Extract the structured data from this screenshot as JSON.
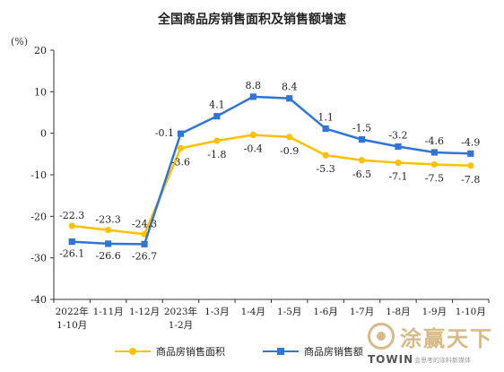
{
  "unit_label": "(%)",
  "chart_data": {
    "type": "line",
    "title": "全国商品房销售面积及销售额增速",
    "xlabel": "",
    "ylabel": "",
    "ylim": [
      -40,
      20
    ],
    "yticks": [
      -40,
      -30,
      -20,
      -10,
      0,
      10,
      20
    ],
    "grid": false,
    "legend_position": "bottom",
    "categories": [
      [
        "2022年",
        "1-10月"
      ],
      [
        "1-11月"
      ],
      [
        "1-12月"
      ],
      [
        "2023年",
        "1-2月"
      ],
      [
        "1-3月"
      ],
      [
        "1-4月"
      ],
      [
        "1-5月"
      ],
      [
        "1-6月"
      ],
      [
        "1-7月"
      ],
      [
        "1-8月"
      ],
      [
        "1-9月"
      ],
      [
        "1-10月"
      ]
    ],
    "series": [
      {
        "name": "商品房销售面积",
        "color": "#ffc000",
        "marker": "circle",
        "label_side": "above-left",
        "values": [
          -22.3,
          -23.3,
          -24.3,
          -3.6,
          -1.8,
          -0.4,
          -0.9,
          -5.3,
          -6.5,
          -7.1,
          -7.5,
          -7.8
        ]
      },
      {
        "name": "商品房销售额",
        "color": "#2e75d6",
        "marker": "square",
        "label_side": "above",
        "values": [
          -26.1,
          -26.6,
          -26.7,
          -0.1,
          4.1,
          8.8,
          8.4,
          1.1,
          -1.5,
          -3.2,
          -4.6,
          -4.9
        ]
      }
    ]
  },
  "watermark": {
    "brand_cn": "涂赢天下",
    "brand_en": "TOWIN",
    "tagline": "会思考的涂料新媒体",
    "logo_icon": "circle-logo-icon"
  }
}
